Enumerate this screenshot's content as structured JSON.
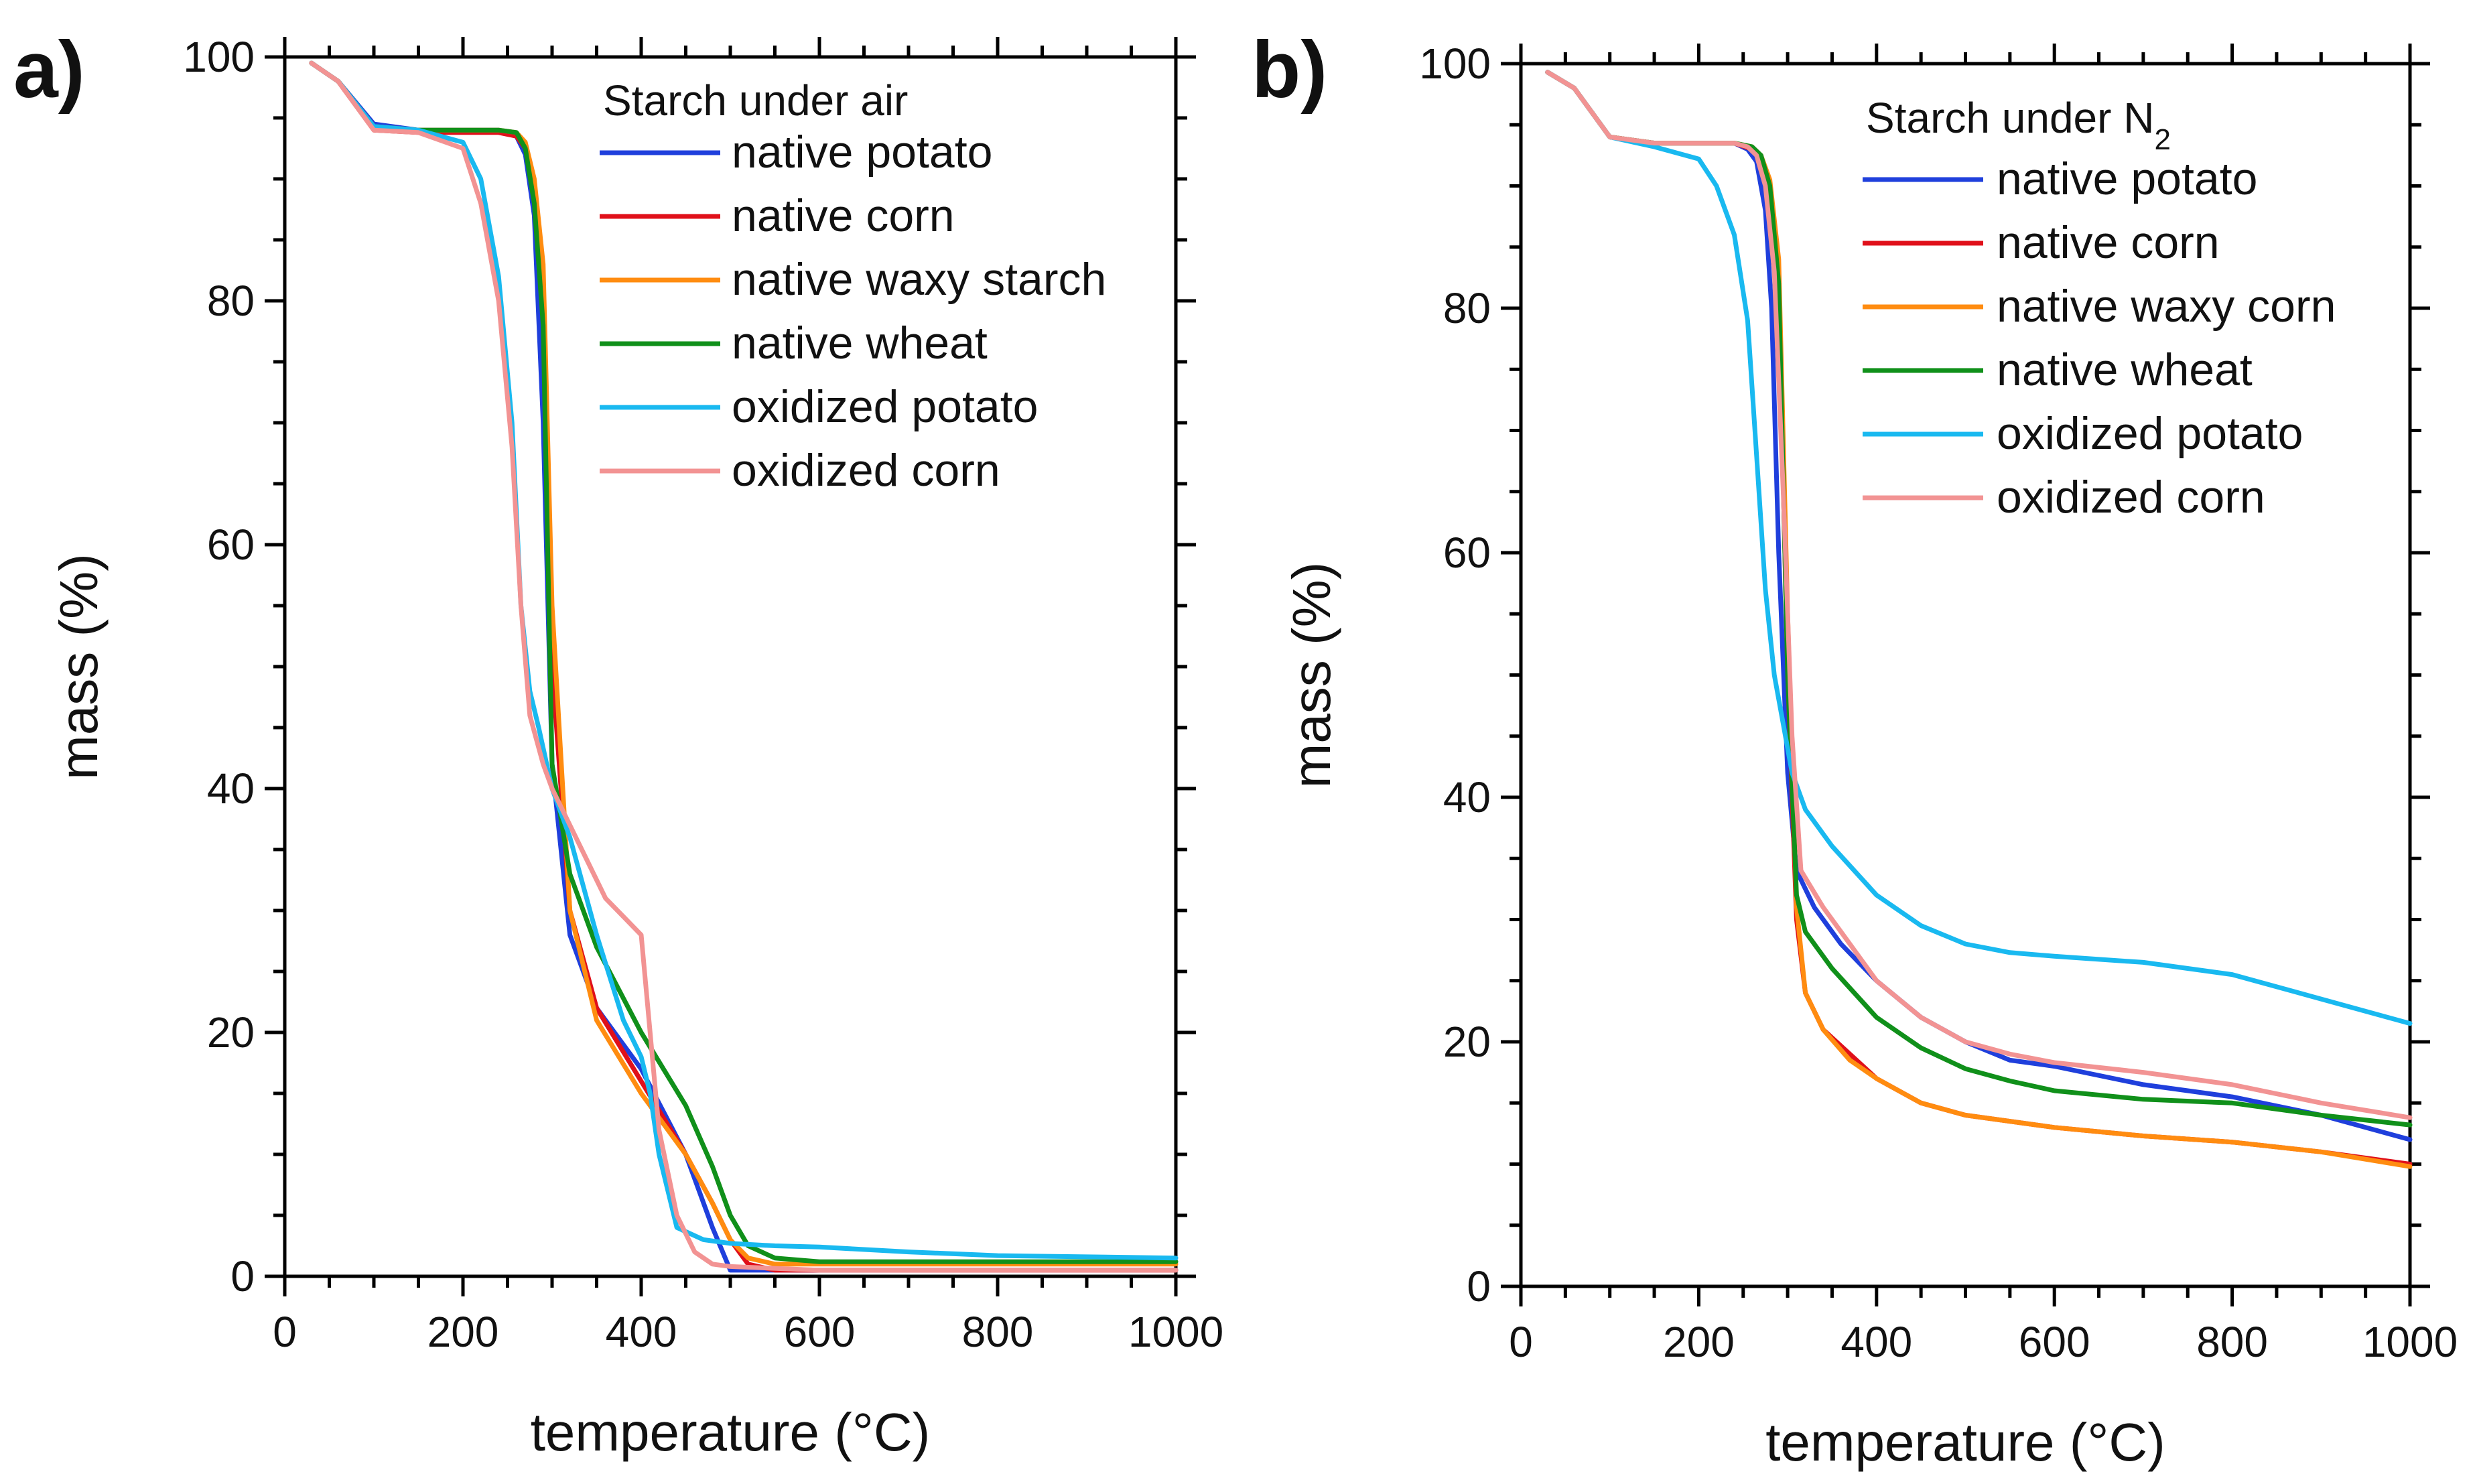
{
  "chart_data": [
    {
      "type": "line",
      "panel_label": "a)",
      "title": "",
      "legend_title": "Starch under air",
      "legend_title_main": "Starch under air",
      "legend_title_sub": "",
      "xlabel": "temperature (°C)",
      "ylabel": "mass (%)",
      "xlim": [
        0,
        1000
      ],
      "ylim": [
        0,
        100
      ],
      "x_ticks": [
        "0",
        "200",
        "400",
        "600",
        "800",
        "1000"
      ],
      "y_ticks": [
        "0",
        "20",
        "40",
        "60",
        "80",
        "100"
      ],
      "legend_position": "top-right",
      "grid": false,
      "series": [
        {
          "name": "native potato",
          "color": "#1f3fdc",
          "x": [
            30,
            60,
            100,
            150,
            200,
            240,
            260,
            270,
            280,
            290,
            300,
            320,
            350,
            400,
            450,
            480,
            500,
            550,
            600,
            700,
            800,
            900,
            1000
          ],
          "y": [
            99.5,
            98,
            94.5,
            94,
            94,
            94,
            93.5,
            92,
            87,
            70,
            42,
            28,
            22,
            17,
            10,
            4,
            0.5,
            0.5,
            0.5,
            0.5,
            0.5,
            0.5,
            0.5
          ]
        },
        {
          "name": "native corn",
          "color": "#e0101a",
          "x": [
            30,
            60,
            100,
            150,
            200,
            240,
            260,
            270,
            280,
            290,
            300,
            320,
            350,
            400,
            450,
            480,
            500,
            520,
            550,
            600,
            700,
            800,
            900,
            1000
          ],
          "y": [
            99.5,
            98,
            94,
            93.8,
            93.8,
            93.8,
            93.5,
            92.5,
            89,
            80,
            50,
            30,
            22,
            16,
            10,
            6,
            3,
            1,
            0.5,
            0.5,
            0.5,
            0.5,
            0.5,
            0.5
          ]
        },
        {
          "name": "native waxy starch",
          "color": "#ff8c10",
          "x": [
            30,
            60,
            100,
            150,
            200,
            240,
            260,
            270,
            280,
            290,
            300,
            320,
            350,
            400,
            450,
            480,
            500,
            520,
            550,
            600,
            700,
            800,
            900,
            1000
          ],
          "y": [
            99.5,
            98,
            94.3,
            94,
            94,
            94,
            93.8,
            93,
            90,
            83,
            55,
            30,
            21,
            15,
            10,
            6,
            3,
            1.5,
            1,
            1,
            1,
            1,
            1,
            1
          ]
        },
        {
          "name": "native wheat",
          "color": "#10901a",
          "x": [
            30,
            60,
            100,
            150,
            200,
            240,
            260,
            270,
            280,
            290,
            300,
            320,
            350,
            400,
            450,
            480,
            500,
            520,
            550,
            600,
            700,
            800,
            900,
            1000
          ],
          "y": [
            99.5,
            98,
            94.3,
            94,
            94,
            94,
            93.8,
            92.5,
            88,
            78,
            42,
            33,
            27,
            20,
            14,
            9,
            5,
            2.5,
            1.5,
            1.2,
            1.2,
            1.2,
            1.2,
            1.2
          ]
        },
        {
          "name": "oxidized potato",
          "color": "#19b9f0",
          "x": [
            30,
            60,
            100,
            150,
            200,
            220,
            240,
            255,
            265,
            275,
            285,
            300,
            320,
            350,
            380,
            400,
            410,
            420,
            440,
            470,
            500,
            550,
            600,
            700,
            800,
            900,
            1000
          ],
          "y": [
            99.5,
            98,
            94.3,
            94,
            93,
            90,
            82,
            70,
            55,
            48,
            45,
            40,
            36,
            28,
            21,
            18,
            15,
            10,
            4,
            3,
            2.7,
            2.5,
            2.4,
            2,
            1.7,
            1.6,
            1.5
          ]
        },
        {
          "name": "oxidized corn",
          "color": "#f29393",
          "x": [
            30,
            60,
            100,
            150,
            200,
            220,
            240,
            255,
            265,
            275,
            290,
            300,
            320,
            340,
            360,
            380,
            400,
            410,
            420,
            440,
            460,
            480,
            500,
            600,
            700,
            800,
            900,
            1000
          ],
          "y": [
            99.5,
            98,
            94,
            93.8,
            92.5,
            88,
            80,
            68,
            55,
            46,
            42,
            40,
            37,
            34,
            31,
            29.5,
            28,
            20,
            12,
            5,
            2,
            1,
            0.8,
            0.5,
            0.5,
            0.5,
            0.5,
            0.5
          ]
        }
      ]
    },
    {
      "type": "line",
      "panel_label": "b)",
      "title": "",
      "legend_title": "Starch under N2",
      "legend_title_main": "Starch under N",
      "legend_title_sub": "2",
      "xlabel": "temperature (°C)",
      "ylabel": "mass (%)",
      "xlim": [
        0,
        1000
      ],
      "ylim": [
        0,
        100
      ],
      "x_ticks": [
        "0",
        "200",
        "400",
        "600",
        "800",
        "1000"
      ],
      "y_ticks": [
        "0",
        "20",
        "40",
        "60",
        "80",
        "100"
      ],
      "legend_position": "top-right",
      "grid": false,
      "series": [
        {
          "name": "native potato",
          "color": "#1f3fdc",
          "x": [
            30,
            60,
            100,
            150,
            200,
            240,
            255,
            265,
            275,
            282,
            290,
            300,
            310,
            330,
            360,
            400,
            450,
            500,
            550,
            600,
            700,
            800,
            900,
            1000
          ],
          "y": [
            99.3,
            98,
            94,
            93.5,
            93.5,
            93.5,
            93,
            92,
            88,
            80,
            60,
            42,
            34,
            31,
            28,
            25,
            22,
            20,
            18.5,
            18,
            16.5,
            15.5,
            14,
            12
          ]
        },
        {
          "name": "native corn",
          "color": "#e0101a",
          "x": [
            30,
            60,
            100,
            150,
            200,
            240,
            260,
            270,
            280,
            290,
            300,
            310,
            320,
            340,
            370,
            400,
            450,
            500,
            550,
            600,
            700,
            800,
            900,
            1000
          ],
          "y": [
            99.3,
            98,
            94,
            93.5,
            93.5,
            93.5,
            93,
            92.5,
            90,
            82,
            50,
            30,
            24,
            21,
            19,
            17,
            15,
            14,
            13.5,
            13,
            12.3,
            11.8,
            11,
            10
          ]
        },
        {
          "name": "native waxy corn",
          "color": "#ff8c10",
          "x": [
            30,
            60,
            100,
            150,
            200,
            240,
            260,
            270,
            280,
            290,
            300,
            310,
            320,
            340,
            370,
            400,
            450,
            500,
            550,
            600,
            700,
            800,
            900,
            1000
          ],
          "y": [
            99.3,
            98,
            94,
            93.5,
            93.5,
            93.5,
            93.2,
            92.5,
            90.5,
            84,
            55,
            31,
            24,
            21,
            18.5,
            17,
            15,
            14,
            13.5,
            13,
            12.3,
            11.8,
            11,
            9.8
          ]
        },
        {
          "name": "native wheat",
          "color": "#10901a",
          "x": [
            30,
            60,
            100,
            150,
            200,
            240,
            260,
            270,
            280,
            290,
            300,
            310,
            320,
            350,
            400,
            450,
            500,
            550,
            600,
            700,
            800,
            900,
            1000
          ],
          "y": [
            99.3,
            98,
            94,
            93.5,
            93.5,
            93.5,
            93.2,
            92.5,
            90,
            82,
            50,
            32,
            29,
            26,
            22,
            19.5,
            17.8,
            16.8,
            16,
            15.3,
            15,
            14,
            13.2
          ]
        },
        {
          "name": "oxidized potato",
          "color": "#19b9f0",
          "x": [
            30,
            60,
            100,
            150,
            200,
            220,
            240,
            255,
            265,
            275,
            285,
            295,
            305,
            320,
            350,
            400,
            450,
            500,
            550,
            600,
            700,
            800,
            900,
            1000
          ],
          "y": [
            99.3,
            98,
            94,
            93.2,
            92.2,
            90,
            86,
            79,
            68,
            57,
            50,
            46,
            42,
            39,
            36,
            32,
            29.5,
            28,
            27.3,
            27,
            26.5,
            25.5,
            23.5,
            21.5
          ]
        },
        {
          "name": "oxidized corn",
          "color": "#f29393",
          "x": [
            30,
            60,
            100,
            150,
            200,
            240,
            255,
            265,
            275,
            285,
            295,
            305,
            315,
            340,
            370,
            400,
            450,
            500,
            550,
            600,
            700,
            800,
            900,
            1000
          ],
          "y": [
            99.3,
            98,
            94,
            93.5,
            93.5,
            93.5,
            93.2,
            92.5,
            90,
            83,
            65,
            45,
            34,
            31,
            28,
            25,
            22,
            20,
            19,
            18.3,
            17.5,
            16.5,
            15,
            13.8
          ]
        }
      ]
    }
  ]
}
